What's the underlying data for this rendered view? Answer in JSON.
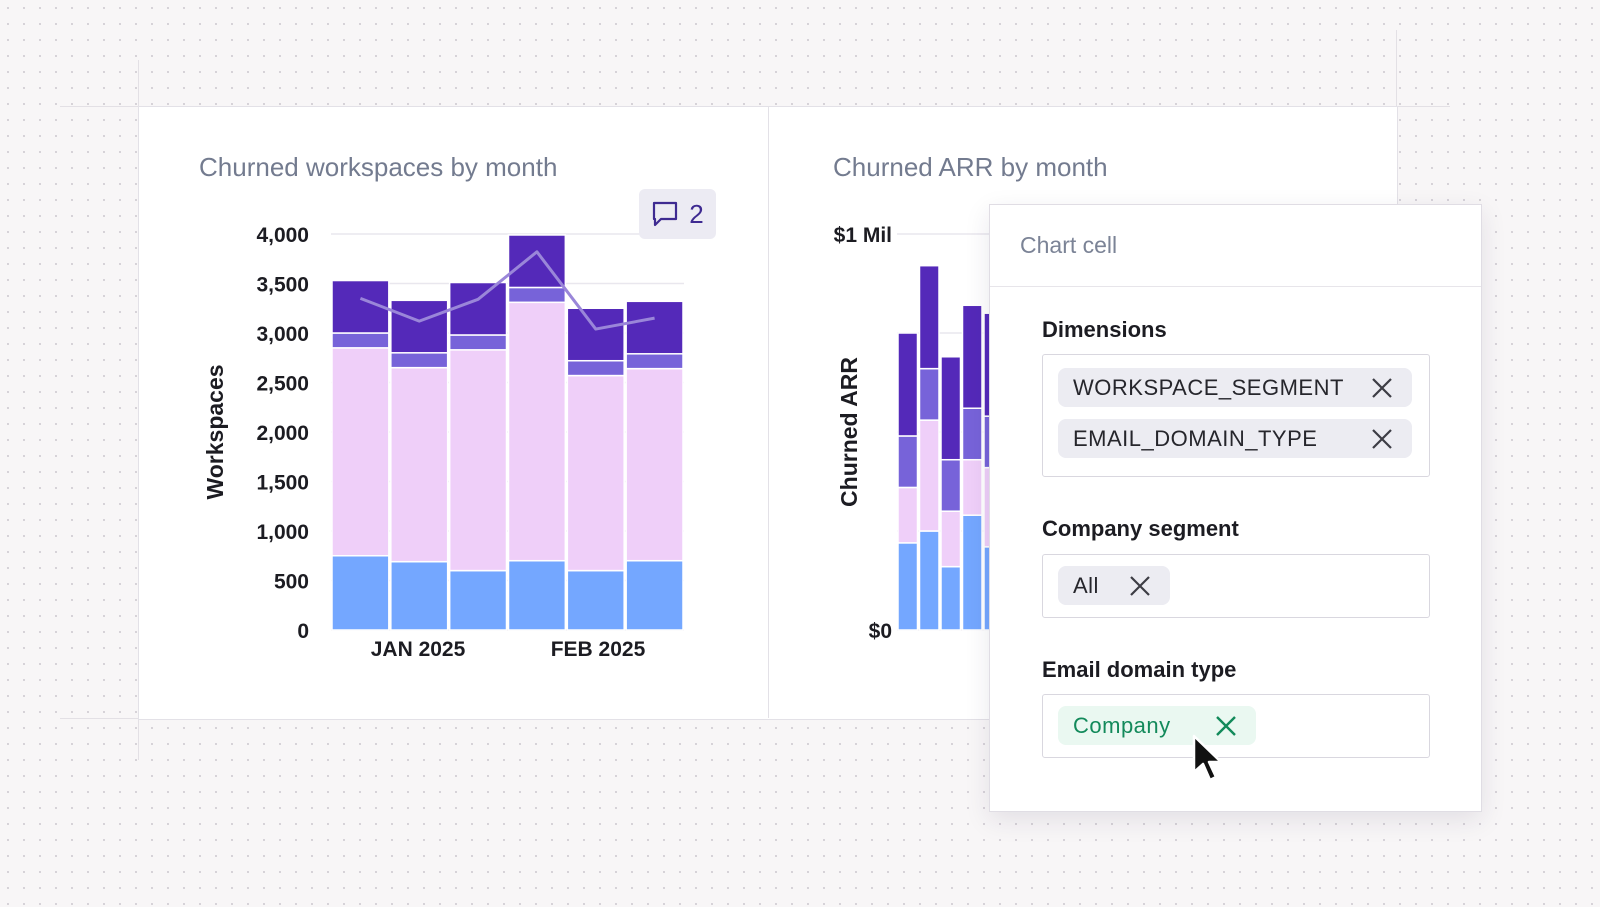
{
  "left_chart": {
    "title": "Churned workspaces by month",
    "comment_count": "2"
  },
  "right_chart": {
    "title": "Churned ARR by month"
  },
  "panel": {
    "title": "Chart cell",
    "dimensions_label": "Dimensions",
    "dimensions": [
      "WORKSPACE_SEGMENT",
      "EMAIL_DOMAIN_TYPE"
    ],
    "company_segment_label": "Company segment",
    "company_segment_value": "All",
    "email_domain_label": "Email domain type",
    "email_domain_value": "Company"
  },
  "colors": {
    "blue": "#74a7ff",
    "pink": "#efcff9",
    "lavender": "#7763d9",
    "indigo": "#5429b9",
    "line": "#9a86d9",
    "green": "#138a5b"
  },
  "chart_data": [
    {
      "type": "bar",
      "stacked": true,
      "title": "Churned workspaces by month",
      "ylabel": "Workspaces",
      "xlabel": "",
      "x_tick_labels": [
        "JAN 2025",
        "FEB 2025"
      ],
      "y_tick_labels": [
        "0",
        "500",
        "1,000",
        "1,500",
        "2,000",
        "2,500",
        "3,000",
        "3,500",
        "4,000"
      ],
      "ylim": [
        0,
        4000
      ],
      "grid": true,
      "categories": [
        "",
        "",
        "",
        "",
        "",
        ""
      ],
      "series": [
        {
          "color": "#74a7ff",
          "values": [
            750,
            690,
            600,
            700,
            600,
            700
          ]
        },
        {
          "color": "#efcff9",
          "values": [
            2100,
            1960,
            2230,
            2610,
            1970,
            1940
          ]
        },
        {
          "color": "#7763d9",
          "values": [
            150,
            150,
            150,
            150,
            150,
            150
          ]
        },
        {
          "color": "#5429b9",
          "values": [
            530,
            530,
            530,
            530,
            530,
            530
          ]
        }
      ],
      "line": {
        "color": "#9a86d9",
        "values": [
          3350,
          3120,
          3340,
          3820,
          3040,
          3150
        ]
      }
    },
    {
      "type": "bar",
      "stacked": true,
      "title": "Churned ARR by month",
      "ylabel": "Churned ARR",
      "y_tick_labels": [
        "$0",
        "$1 Mil"
      ],
      "ylim": [
        0,
        1000000
      ],
      "grid": true,
      "series": [
        {
          "color": "#74a7ff",
          "values": [
            220000,
            250000,
            160000,
            290000,
            210000
          ]
        },
        {
          "color": "#efcff9",
          "values": [
            140000,
            280000,
            140000,
            140000,
            200000
          ]
        },
        {
          "color": "#7763d9",
          "values": [
            130000,
            130000,
            130000,
            130000,
            130000
          ]
        },
        {
          "color": "#5429b9",
          "values": [
            260000,
            260000,
            260000,
            260000,
            260000
          ]
        }
      ]
    }
  ]
}
